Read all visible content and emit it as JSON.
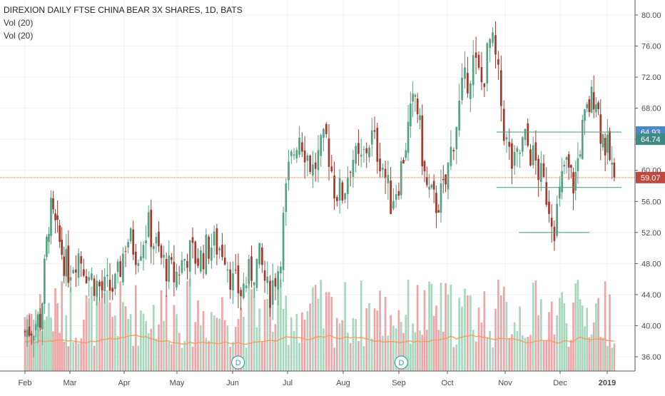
{
  "header": {
    "title": "DIREXION DAILY FTSE CHINA BEAR 3X SHARES, 1D, BATS",
    "indicator_1": "Vol (20)",
    "indicator_2": "Vol (20)"
  },
  "colors": {
    "up": "#53a281",
    "down": "#a2392c",
    "vol_up": "#a7d8bd",
    "vol_down": "#efa5a8",
    "vol_ma": "#f39a5a",
    "price_line": "#e4816d",
    "support_line": "#53a281",
    "tag_blue": "#4a88c7",
    "tag_teal": "#3d8a84",
    "tag_red": "#c0483f",
    "grid": "#eef0f3",
    "axis_text": "#4a4a4a"
  },
  "chart_data": {
    "type": "candlestick",
    "title": "DIREXION DAILY FTSE CHINA BEAR 3X SHARES, 1D, BATS",
    "x_ticks": [
      "Feb",
      "Mar",
      "Apr",
      "May",
      "Jun",
      "Jul",
      "Aug",
      "Sep",
      "Oct",
      "Nov",
      "Dec",
      "2019"
    ],
    "y_ticks": [
      "36.00",
      "40.00",
      "44.00",
      "48.00",
      "52.00",
      "56.00",
      "60.00",
      "64.00",
      "68.00",
      "72.00",
      "76.00",
      "80.00"
    ],
    "ylim": [
      34.6,
      81.2
    ],
    "price_tags": [
      {
        "value": 64.93,
        "label": "64.93",
        "style": "blue"
      },
      {
        "value": 64.74,
        "label": "64.74",
        "style": "teal"
      },
      {
        "value": 59.07,
        "label": "59.07",
        "style": "red"
      }
    ],
    "event_markers": [
      {
        "label": "D",
        "month_index": 4.1
      },
      {
        "label": "D",
        "month_index": 7.05
      }
    ],
    "anchors": [
      [
        0.0,
        39.2
      ],
      [
        0.35,
        41.0
      ],
      [
        0.55,
        55.0
      ],
      [
        0.75,
        51.0
      ],
      [
        0.95,
        47.0
      ],
      [
        1.15,
        49.5
      ],
      [
        1.35,
        46.5
      ],
      [
        1.6,
        44.5
      ],
      [
        1.85,
        45.0
      ],
      [
        2.05,
        51.5
      ],
      [
        2.25,
        49.5
      ],
      [
        2.45,
        52.8
      ],
      [
        2.7,
        48.5
      ],
      [
        2.95,
        46.2
      ],
      [
        3.2,
        49.5
      ],
      [
        3.4,
        48.5
      ],
      [
        3.6,
        50.5
      ],
      [
        3.85,
        50.0
      ],
      [
        4.0,
        45.5
      ],
      [
        4.15,
        44.3
      ],
      [
        4.3,
        46.5
      ],
      [
        4.5,
        48.5
      ],
      [
        4.65,
        43.8
      ],
      [
        4.85,
        48.0
      ],
      [
        5.0,
        59.0
      ],
      [
        5.2,
        65.2
      ],
      [
        5.45,
        60.0
      ],
      [
        5.7,
        64.0
      ],
      [
        5.85,
        57.5
      ],
      [
        6.0,
        57.0
      ],
      [
        6.15,
        62.0
      ],
      [
        6.3,
        60.5
      ],
      [
        6.5,
        64.5
      ],
      [
        6.7,
        61.0
      ],
      [
        6.85,
        56.0
      ],
      [
        7.0,
        58.8
      ],
      [
        7.2,
        65.5
      ],
      [
        7.35,
        70.0
      ],
      [
        7.55,
        58.0
      ],
      [
        7.75,
        55.5
      ],
      [
        7.95,
        57.5
      ],
      [
        8.05,
        62.0
      ],
      [
        8.25,
        70.0
      ],
      [
        8.45,
        74.0
      ],
      [
        8.6,
        71.0
      ],
      [
        8.75,
        77.0
      ],
      [
        8.85,
        73.5
      ],
      [
        9.0,
        64.0
      ],
      [
        9.15,
        60.0
      ],
      [
        9.35,
        64.0
      ],
      [
        9.55,
        61.0
      ],
      [
        9.75,
        57.0
      ],
      [
        9.9,
        53.0
      ],
      [
        10.1,
        61.0
      ],
      [
        10.3,
        58.0
      ],
      [
        10.45,
        64.5
      ],
      [
        10.6,
        68.0
      ],
      [
        10.75,
        70.5
      ],
      [
        10.85,
        65.5
      ],
      [
        10.95,
        63.5
      ],
      [
        11.05,
        61.5
      ],
      [
        11.15,
        59.07
      ]
    ]
  }
}
